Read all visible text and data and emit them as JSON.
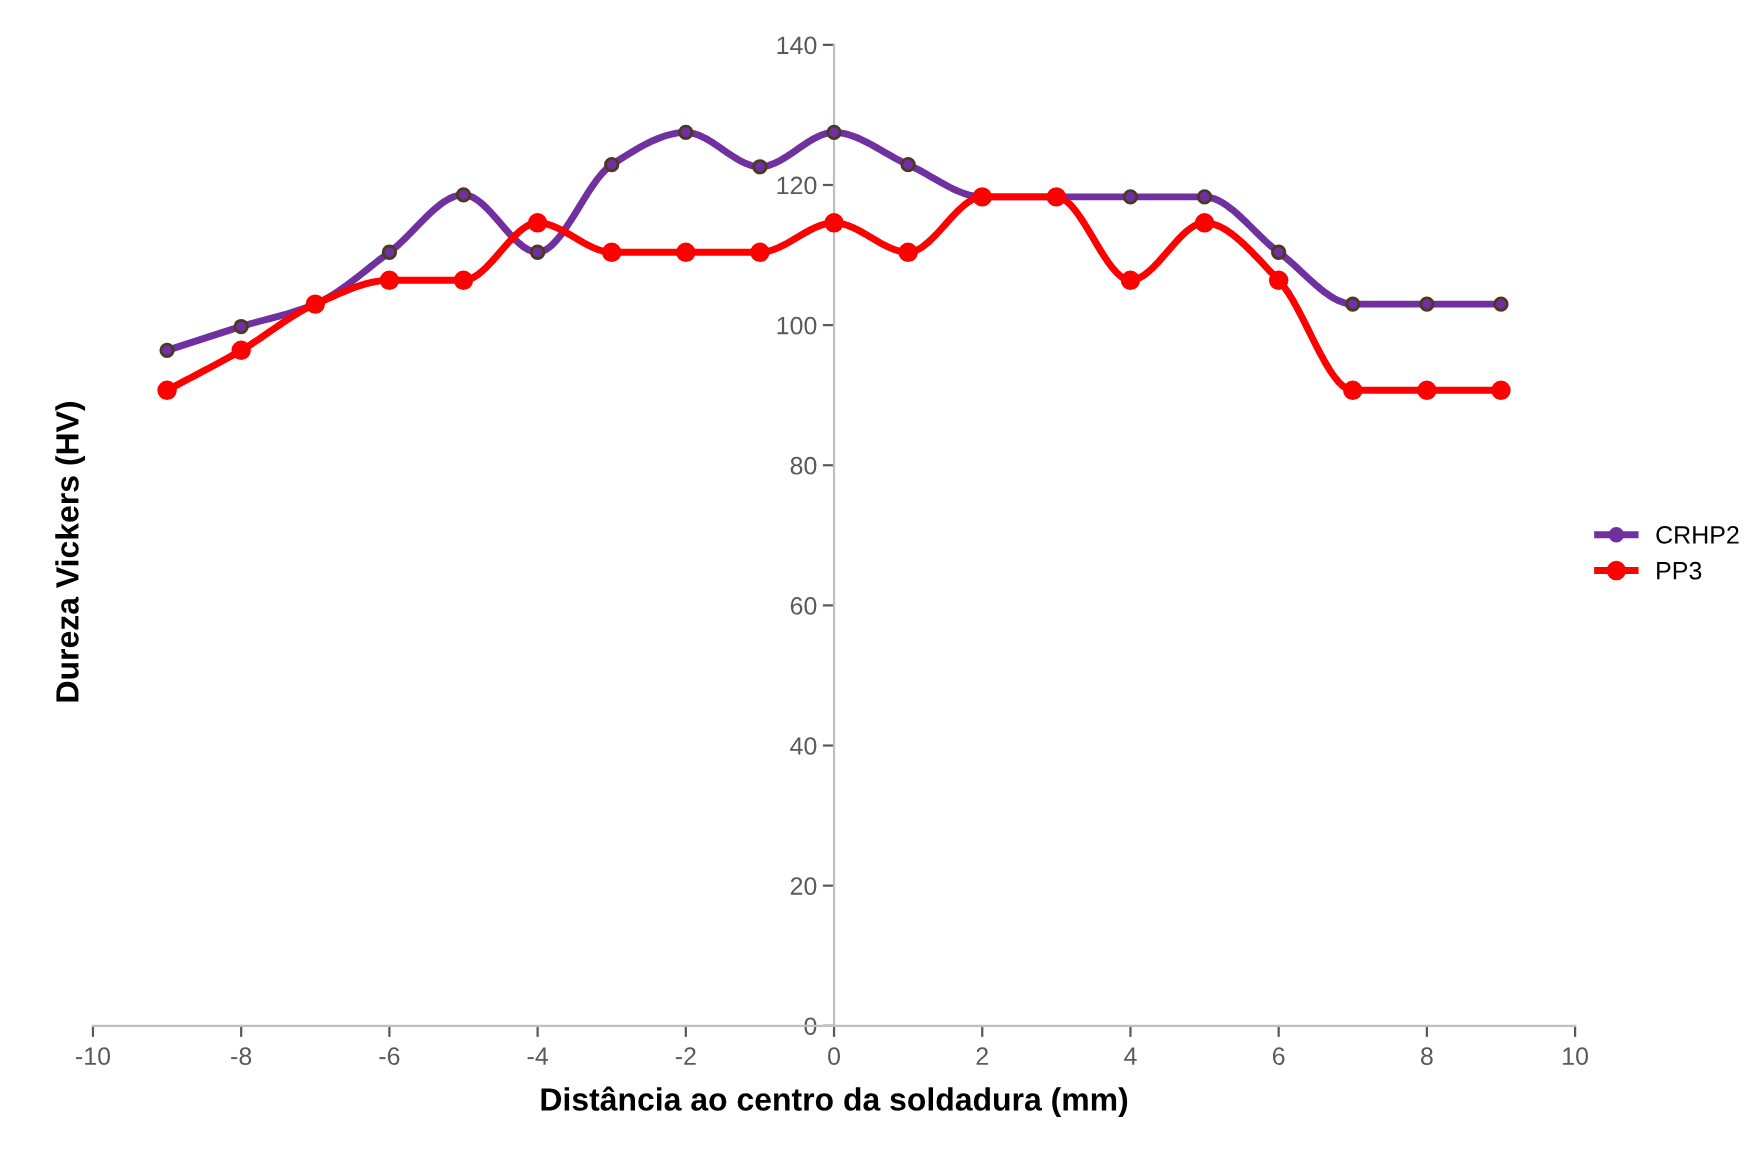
{
  "chart_data": {
    "type": "line",
    "xlabel": "Distância ao centro da soldadura (mm)",
    "ylabel": "Dureza Vickers (HV)",
    "x": [
      -9,
      -8,
      -7,
      -6,
      -5,
      -4,
      -3,
      -2,
      -1,
      0,
      1,
      2,
      3,
      4,
      5,
      6,
      7,
      8,
      9
    ],
    "series": [
      {
        "name": "CRHP2",
        "color": "#7030a0",
        "values": [
          96.4,
          99.8,
          103,
          110.4,
          118.6,
          110.4,
          122.9,
          127.5,
          122.6,
          127.5,
          122.9,
          118.3,
          118.3,
          118.3,
          118.3,
          110.4,
          103,
          103,
          103
        ]
      },
      {
        "name": "PP3",
        "color": "#ff0000",
        "values": [
          90.7,
          96.4,
          103,
          106.4,
          106.4,
          114.6,
          110.4,
          110.4,
          110.4,
          114.6,
          110.4,
          118.3,
          118.3,
          106.4,
          114.6,
          106.4,
          90.7,
          90.7,
          90.7
        ]
      }
    ],
    "xlim": [
      -10,
      10
    ],
    "xticks": [
      -10,
      -8,
      -6,
      -4,
      -2,
      0,
      2,
      4,
      6,
      8,
      10
    ],
    "ylim": [
      0,
      140
    ],
    "yticks": [
      0,
      20,
      40,
      60,
      80,
      100,
      120,
      140
    ],
    "grid": false,
    "legend": "right",
    "marker": "circle",
    "line_style": "solid"
  }
}
